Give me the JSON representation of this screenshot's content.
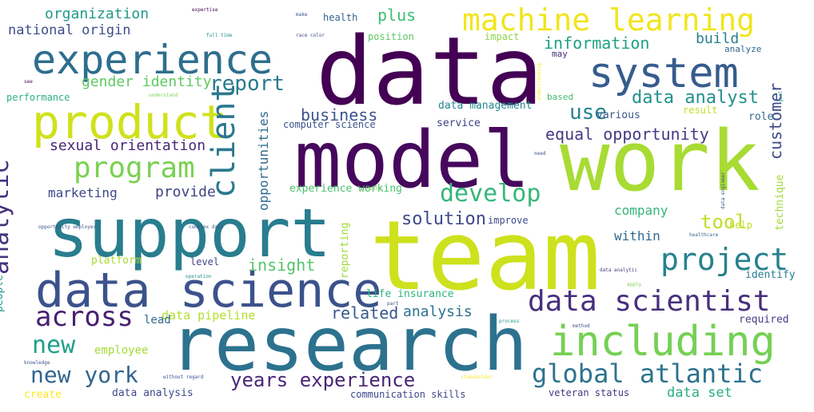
{
  "words": [
    {
      "text": "data",
      "color": "#440154"
    },
    {
      "text": "model",
      "color": "#46085c"
    },
    {
      "text": "work",
      "color": "#a8db34"
    },
    {
      "text": "team",
      "color": "#cde11d"
    },
    {
      "text": "research",
      "color": "#2c728e"
    },
    {
      "text": "support",
      "color": "#287d8e"
    },
    {
      "text": "experience",
      "color": "#2e6e8e"
    },
    {
      "text": "data science",
      "color": "#3b528b"
    },
    {
      "text": "product",
      "color": "#d0e11c"
    },
    {
      "text": "machine learning",
      "color": "#f1e51d"
    },
    {
      "text": "system",
      "color": "#365c8d"
    },
    {
      "text": "including",
      "color": "#75d054"
    },
    {
      "text": "data scientist",
      "color": "#472f7d"
    },
    {
      "text": "global atlantic",
      "color": "#2c738e"
    },
    {
      "text": "client",
      "color": "#2a788e"
    },
    {
      "text": "program",
      "color": "#7ad151"
    },
    {
      "text": "project",
      "color": "#26828e"
    },
    {
      "text": "across",
      "color": "#482071"
    },
    {
      "text": "analytic",
      "color": "#46337f"
    },
    {
      "text": "new",
      "color": "#1f9e89"
    },
    {
      "text": "new york",
      "color": "#32648e"
    },
    {
      "text": "develop",
      "color": "#35b779"
    },
    {
      "text": "years experience",
      "color": "#482576"
    },
    {
      "text": "customer",
      "color": "#3e4989"
    },
    {
      "text": "report",
      "color": "#287c8e"
    },
    {
      "text": "use",
      "color": "#25838e"
    },
    {
      "text": "data analyst",
      "color": "#21918c"
    },
    {
      "text": "solution",
      "color": "#3e4a89"
    },
    {
      "text": "equal opportunity",
      "color": "#443b84"
    },
    {
      "text": "tool",
      "color": "#bddf26"
    },
    {
      "text": "information",
      "color": "#1fa187"
    },
    {
      "text": "business",
      "color": "#3a548c"
    },
    {
      "text": "insight",
      "color": "#52c569"
    },
    {
      "text": "sexual orientation",
      "color": "#482878"
    },
    {
      "text": "gender identity",
      "color": "#5ec962"
    },
    {
      "text": "organization",
      "color": "#1f9a8a"
    },
    {
      "text": "national origin",
      "color": "#3d4d8a"
    },
    {
      "text": "build",
      "color": "#277f8e"
    },
    {
      "text": "plus",
      "color": "#40bd72"
    },
    {
      "text": "opportunities",
      "color": "#2f6b8e"
    },
    {
      "text": "marketing",
      "color": "#3f4788"
    },
    {
      "text": "provide",
      "color": "#414487"
    },
    {
      "text": "related",
      "color": "#38588c"
    },
    {
      "text": "analysis",
      "color": "#2c718e"
    },
    {
      "text": "company",
      "color": "#34b679"
    },
    {
      "text": "within",
      "color": "#31688e"
    },
    {
      "text": "data pipeline",
      "color": "#b5de2b"
    },
    {
      "text": "data set",
      "color": "#29af7f"
    },
    {
      "text": "lead",
      "color": "#30698e"
    },
    {
      "text": "data management",
      "color": "#24868e"
    },
    {
      "text": "computer science",
      "color": "#3b528b"
    },
    {
      "text": "service",
      "color": "#424086"
    },
    {
      "text": "various",
      "color": "#3b528b"
    },
    {
      "text": "role",
      "color": "#31688e"
    },
    {
      "text": "experience working",
      "color": "#4ac16d"
    },
    {
      "text": "reporting",
      "color": "#9fda3a"
    },
    {
      "text": "technique",
      "color": "#a0da39"
    },
    {
      "text": "improve",
      "color": "#3e4989"
    },
    {
      "text": "help",
      "color": "#bddf26"
    },
    {
      "text": "identify",
      "color": "#277f8e"
    },
    {
      "text": "required",
      "color": "#433e85"
    },
    {
      "text": "employee",
      "color": "#a5db36"
    },
    {
      "text": "data analysis",
      "color": "#3e4989"
    },
    {
      "text": "communication skills",
      "color": "#3f4788"
    },
    {
      "text": "veteran status",
      "color": "#443983"
    },
    {
      "text": "life insurance",
      "color": "#2fb47c"
    },
    {
      "text": "level",
      "color": "#414487"
    },
    {
      "text": "platform",
      "color": "#a8db34"
    },
    {
      "text": "people",
      "color": "#1f988b"
    },
    {
      "text": "performance",
      "color": "#2db27d"
    },
    {
      "text": "health",
      "color": "#355f8d"
    },
    {
      "text": "position",
      "color": "#5cc863"
    },
    {
      "text": "impact",
      "color": "#8bd646"
    },
    {
      "text": "may",
      "color": "#472c7a"
    },
    {
      "text": "analyze",
      "color": "#31688e"
    },
    {
      "text": "based",
      "color": "#40bd72"
    },
    {
      "text": "result",
      "color": "#c2df23"
    },
    {
      "text": "create",
      "color": "#fde725"
    },
    {
      "text": "expertise",
      "color": "#440154"
    },
    {
      "text": "make",
      "color": "#3b528b"
    },
    {
      "text": "full time",
      "color": "#21918c"
    },
    {
      "text": "race color",
      "color": "#3e4989"
    },
    {
      "text": "understand",
      "color": "#7ad151"
    },
    {
      "text": "see",
      "color": "#440154"
    },
    {
      "text": "goal",
      "color": "#21918c"
    },
    {
      "text": "understanding",
      "color": "#fde725"
    },
    {
      "text": "need",
      "color": "#3b528b"
    },
    {
      "text": "data engineer",
      "color": "#3b528b"
    },
    {
      "text": "healthcare",
      "color": "#31688e"
    },
    {
      "text": "opportunity employer",
      "color": "#3b528b"
    },
    {
      "text": "complex data",
      "color": "#3b528b"
    },
    {
      "text": "operation",
      "color": "#21918c"
    },
    {
      "text": "apply",
      "color": "#7ad151"
    },
    {
      "text": "data analytic",
      "color": "#443983"
    },
    {
      "text": "part",
      "color": "#3b528b"
    },
    {
      "text": "process",
      "color": "#21918c"
    },
    {
      "text": "method",
      "color": "#3b528b"
    },
    {
      "text": "knowledge",
      "color": "#3b528b"
    },
    {
      "text": "without regard",
      "color": "#3b528b"
    },
    {
      "text": "stakeholder",
      "color": "#fde725"
    },
    {
      "text": "well",
      "color": "#7ad151"
    }
  ]
}
